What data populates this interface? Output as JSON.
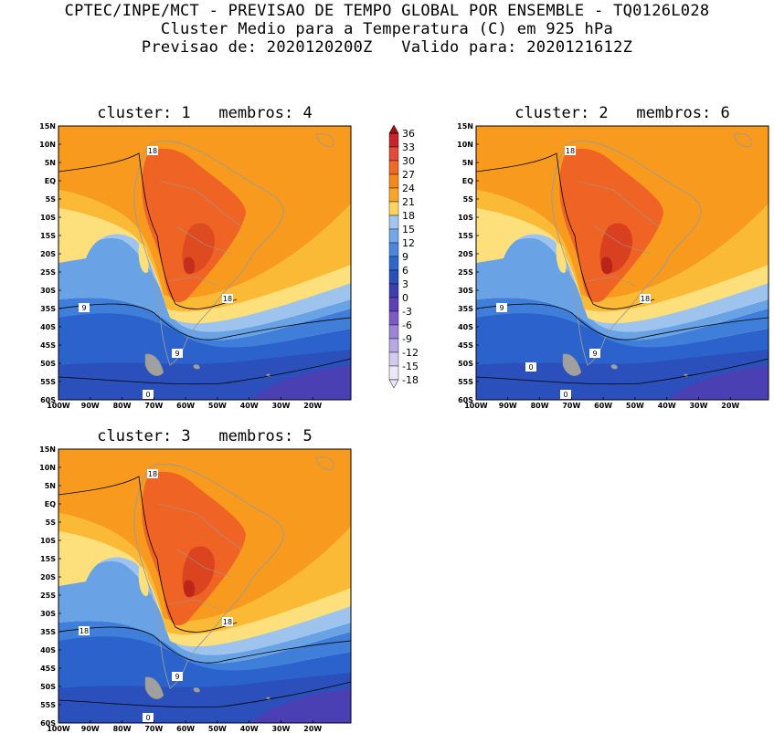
{
  "header": {
    "line1": "CPTEC/INPE/MCT - PREVISAO DE TEMPO GLOBAL POR ENSEMBLE - TQ0126L028",
    "line2": "Cluster Medio para a Temperatura (C) em 925 hPa",
    "line3": "Previsao de: 2020120200Z   Valido para: 2020121612Z"
  },
  "axes": {
    "lat_labels": [
      "15N",
      "10N",
      "5N",
      "EQ",
      "5S",
      "10S",
      "15S",
      "20S",
      "25S",
      "30S",
      "35S",
      "40S",
      "45S",
      "50S",
      "55S",
      "60S"
    ],
    "lon_labels": [
      "100W",
      "90W",
      "80W",
      "70W",
      "60W",
      "50W",
      "40W",
      "30W",
      "20W"
    ]
  },
  "colorbar": {
    "levels": [
      "36",
      "33",
      "30",
      "27",
      "24",
      "21",
      "18",
      "15",
      "12",
      "9",
      "6",
      "3",
      "0",
      "-3",
      "-6",
      "-9",
      "-12",
      "-15",
      "-18"
    ],
    "colors": [
      "#9e0f13",
      "#c4262b",
      "#e24a3a",
      "#ef6a24",
      "#f48a1c",
      "#fba62b",
      "#fdd461",
      "#a2c5ee",
      "#72a7e8",
      "#4a86dc",
      "#2f66cc",
      "#2a4fb8",
      "#3d3fb0",
      "#5b40b8",
      "#7b5cc6",
      "#9a86d6",
      "#b6aae3",
      "#d4ccef",
      "#ece8f8"
    ],
    "mid_color_24_21": "#f26a1e",
    "mid_color_21_18": "#f89c1e"
  },
  "panels": [
    {
      "title": "cluster: 1   membros: 4",
      "contour_labels": [
        "18",
        "18",
        "9",
        "9",
        "0"
      ]
    },
    {
      "title": "cluster: 2   membros: 6",
      "contour_labels": [
        "18",
        "18",
        "9",
        "9",
        "0",
        "0"
      ]
    },
    {
      "title": "cluster: 3   membros: 5",
      "contour_labels": [
        "18",
        "18",
        "18",
        "9",
        "0"
      ]
    }
  ]
}
